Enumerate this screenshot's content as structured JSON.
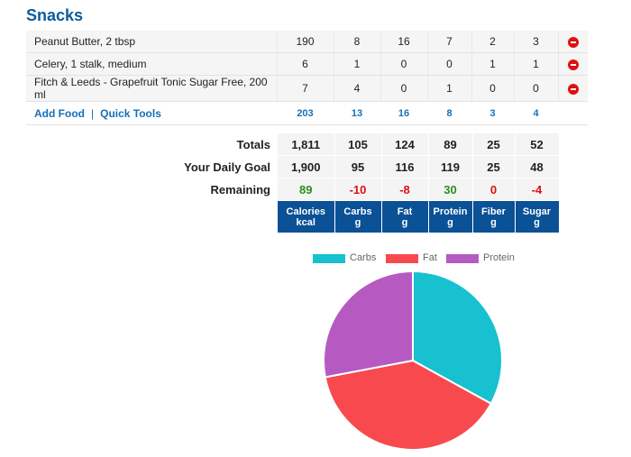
{
  "section_title": "Snacks",
  "food_rows": [
    {
      "name": "Peanut Butter, 2 tbsp",
      "values": [
        "190",
        "8",
        "16",
        "7",
        "2",
        "3"
      ]
    },
    {
      "name": "Celery, 1 stalk, medium",
      "values": [
        "6",
        "1",
        "0",
        "0",
        "1",
        "1"
      ]
    },
    {
      "name": "Fitch & Leeds - Grapefruit Tonic Sugar Free, 200 ml",
      "values": [
        "7",
        "4",
        "0",
        "1",
        "0",
        "0"
      ]
    }
  ],
  "footer": {
    "add_food": "Add Food",
    "quick_tools": "Quick Tools",
    "sums": [
      "203",
      "13",
      "16",
      "8",
      "3",
      "4"
    ]
  },
  "summary": {
    "totals_label": "Totals",
    "totals": [
      "1,811",
      "105",
      "124",
      "89",
      "25",
      "52"
    ],
    "goal_label": "Your Daily Goal",
    "goal": [
      "1,900",
      "95",
      "116",
      "119",
      "25",
      "48"
    ],
    "remaining_label": "Remaining",
    "remaining": [
      "89",
      "-10",
      "-8",
      "30",
      "0",
      "-4"
    ]
  },
  "columns": [
    {
      "name": "Calories",
      "unit": "kcal"
    },
    {
      "name": "Carbs",
      "unit": "g"
    },
    {
      "name": "Fat",
      "unit": "g"
    },
    {
      "name": "Protein",
      "unit": "g"
    },
    {
      "name": "Fiber",
      "unit": "g"
    },
    {
      "name": "Sugar",
      "unit": "g"
    }
  ],
  "colors": {
    "header_bg": "#0a5196",
    "link": "#1670b8",
    "positive": "#2e8b1e",
    "negative": "#e01010",
    "delete": "#dd1111"
  },
  "icons": {
    "delete": "remove-circle-icon"
  },
  "chart_data": {
    "type": "pie",
    "legend_position": "top",
    "series": [
      {
        "name": "Carbs",
        "value": 105,
        "color": "#17c1cf"
      },
      {
        "name": "Fat",
        "value": 124,
        "color": "#f84a4e"
      },
      {
        "name": "Protein",
        "value": 89,
        "color": "#b65ac2"
      }
    ]
  }
}
